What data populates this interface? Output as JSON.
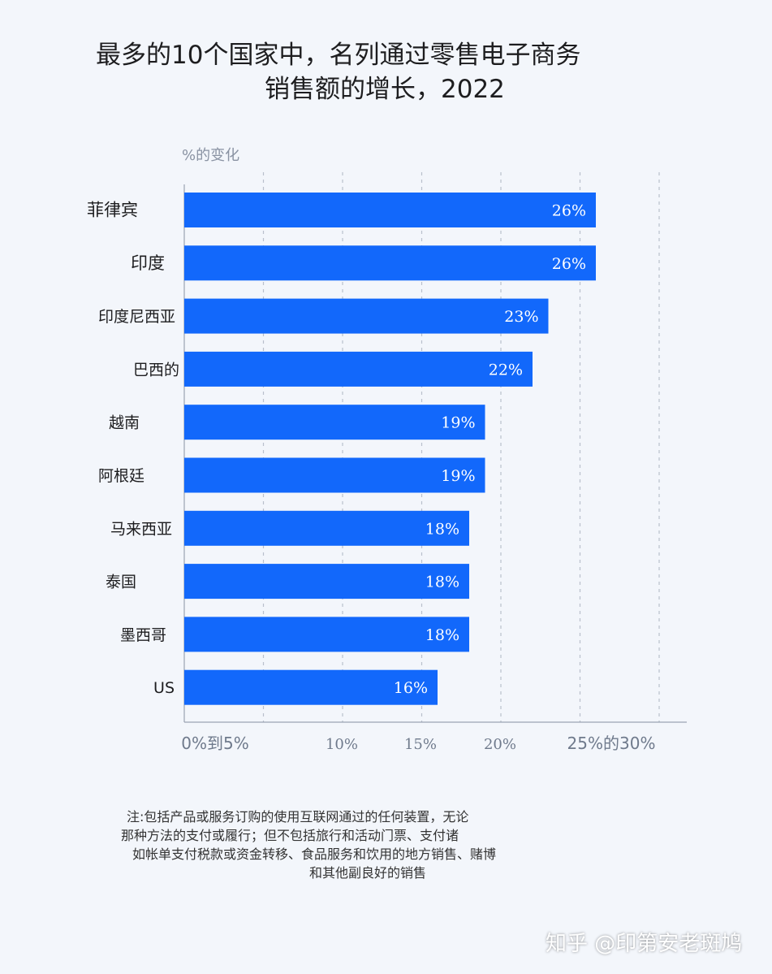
{
  "chart_data": {
    "type": "bar",
    "orientation": "horizontal",
    "title_line1": "最多的10个国家中，名列通过零售电子商务",
    "title_line2": "销售额的增长，2022",
    "axis_unit_label": "%的变化",
    "categories": [
      "菲律宾",
      "印度",
      "印度尼西亚",
      "巴西的",
      "越南",
      "阿根廷",
      "马来西亚",
      "泰国",
      "墨西哥",
      "US"
    ],
    "values": [
      26,
      26,
      23,
      22,
      19,
      19,
      18,
      18,
      18,
      16
    ],
    "value_labels": [
      "26%",
      "26%",
      "23%",
      "22%",
      "19%",
      "19%",
      "18%",
      "18%",
      "18%",
      "16%"
    ],
    "x_tick_labels": [
      "0%到5%",
      "10%",
      "15%",
      "20%",
      "25%的30%"
    ],
    "xlim": [
      0,
      30
    ],
    "grid": true,
    "bar_color": "#1268fb"
  },
  "footnote": {
    "line1": "注:包括产品或服务订购的使用互联网通过的任何装置，无论",
    "line2": "那种方法的支付或履行；但不包括旅行和活动门票、支付诸",
    "line3": "如帐单支付税款或资金转移、食品服务和饮用的地方销售、赌博",
    "line4": "和其他副良好的销售"
  },
  "watermark": "知乎 @印第安老斑鸠"
}
